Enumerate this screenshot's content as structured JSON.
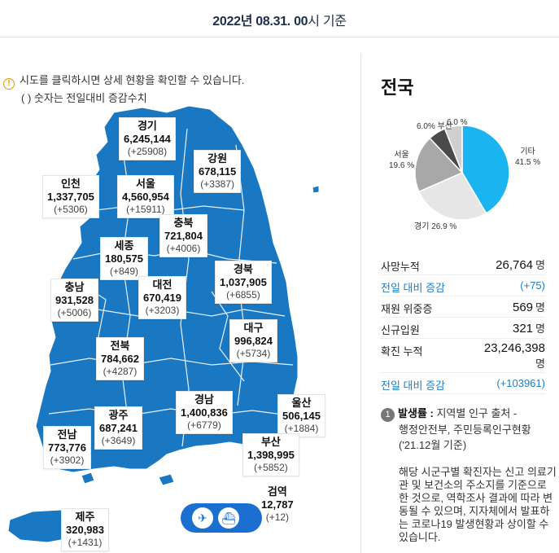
{
  "header": {
    "date_bold": "2022년 08.31. 00",
    "date_rest": "시 기준"
  },
  "notice": {
    "line1": "시도를 클릭하시면 상세 현황을 확인할 수 있습니다.",
    "line2": "( ) 숫자는 전일대비 증감수치"
  },
  "regions": {
    "gyeonggi": {
      "name": "경기",
      "count": "6,245,144",
      "delta": "(+25908)"
    },
    "gangwon": {
      "name": "강원",
      "count": "678,115",
      "delta": "(+3387)"
    },
    "incheon": {
      "name": "인천",
      "count": "1,337,705",
      "delta": "(+5306)"
    },
    "seoul": {
      "name": "서울",
      "count": "4,560,954",
      "delta": "(+15911)"
    },
    "chungbuk": {
      "name": "충북",
      "count": "721,804",
      "delta": "(+4006)"
    },
    "sejong": {
      "name": "세종",
      "count": "180,575",
      "delta": "(+849)"
    },
    "gyeongbuk": {
      "name": "경북",
      "count": "1,037,905",
      "delta": "(+6855)"
    },
    "chungnam": {
      "name": "충남",
      "count": "931,528",
      "delta": "(+5006)"
    },
    "daejeon": {
      "name": "대전",
      "count": "670,419",
      "delta": "(+3203)"
    },
    "daegu": {
      "name": "대구",
      "count": "996,824",
      "delta": "(+5734)"
    },
    "jeonbuk": {
      "name": "전북",
      "count": "784,662",
      "delta": "(+4287)"
    },
    "gyeongnam": {
      "name": "경남",
      "count": "1,400,836",
      "delta": "(+6779)"
    },
    "ulsan": {
      "name": "울산",
      "count": "506,145",
      "delta": "(+1884)"
    },
    "gwangju": {
      "name": "광주",
      "count": "687,241",
      "delta": "(+3649)"
    },
    "jeonnam": {
      "name": "전남",
      "count": "773,776",
      "delta": "(+3902)"
    },
    "busan": {
      "name": "부산",
      "count": "1,398,995",
      "delta": "(+5852)"
    },
    "quarantine": {
      "name": "검역",
      "count": "12,787",
      "delta": "(+12)"
    },
    "jeju": {
      "name": "제주",
      "count": "320,983",
      "delta": "(+1431)"
    }
  },
  "transport": {
    "airport_icon": "airplane-icon",
    "port_icon": "ship-icon"
  },
  "side": {
    "title": "전국",
    "pie": {
      "labels": [
        {
          "name": "기타",
          "pct": "41.5 %"
        },
        {
          "name": "경기",
          "pct": "26.9 %"
        },
        {
          "name": "서울",
          "pct": "19.6 %"
        },
        {
          "name": "부산",
          "pct": "6.0 %"
        },
        {
          "name": "",
          "pct": "6.0%"
        }
      ]
    },
    "stats": {
      "deaths_label": "사망누적",
      "deaths_value": "26,764",
      "deaths_unit": "명",
      "deaths_delta_label": "전일 대비 증감",
      "deaths_delta_value": "(+75)",
      "severe_label": "재원 위중증",
      "severe_value": "569",
      "severe_unit": "명",
      "new_label": "신규입원",
      "new_value": "321",
      "new_unit": "명",
      "confirmed_label": "확진 누적",
      "confirmed_value": "23,246,398",
      "confirmed_unit": "명",
      "confirmed_delta_label": "전일 대비 증감",
      "confirmed_delta_value": "(+103961)"
    },
    "source": {
      "num": "1",
      "title": "발생률 :",
      "line1": "지역별 인구 출처 -",
      "line2": "행정안전부, 주민등록인구현황",
      "line3": "('21.12월 기준)"
    },
    "note": "해당 시군구별 확진자는 신고 의료기관 및 보건소의 주소지를 기준으로 한 것으로, 역학조사 결과에 따라 변동될 수 있으며, 지자체에서 발표하는 코로나19 발생현황과 상이할 수 있습니다."
  },
  "chart_data": {
    "type": "pie",
    "categories": [
      "기타",
      "경기",
      "서울",
      "부산",
      ""
    ],
    "values": [
      41.5,
      26.9,
      19.6,
      6.0,
      6.0
    ],
    "colors": [
      "#1ab4f0",
      "#e6e6e6",
      "#a8a8a8",
      "#4a4a4a",
      "#cfcfcf"
    ]
  }
}
